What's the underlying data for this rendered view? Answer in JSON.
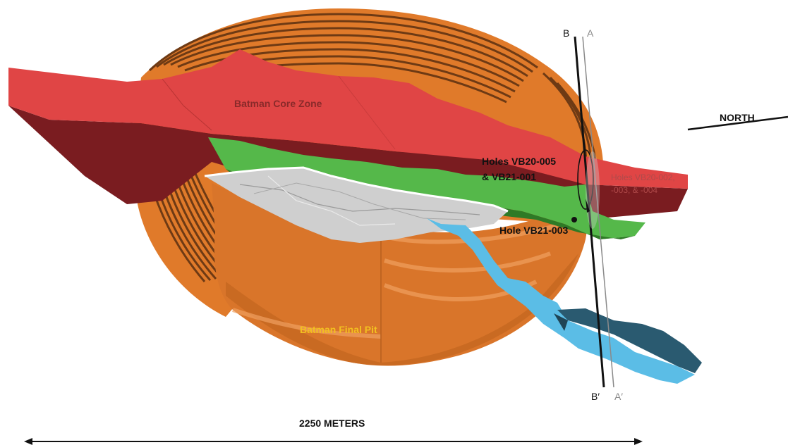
{
  "labels": {
    "core_zone": "Batman Core Zone",
    "final_pit": "Batman Final Pit",
    "holes_005_001_line1": "Holes VB20-005",
    "holes_005_001_line2": "& VB21-001",
    "holes_002_line1": "Holes VB20-002,",
    "holes_002_line2": "-003, & -004",
    "hole_003": "Hole VB21-003",
    "north": "NORTH",
    "scale": "2250 METERS",
    "section_b_top": "B",
    "section_a_top": "A",
    "section_b_bottom": "B′",
    "section_a_bottom": "A′"
  },
  "colors": {
    "core_zone": "#e04545",
    "core_zone_dark": "#7a1c20",
    "pit_orange": "#e07a2a",
    "pit_bench_dark": "#6e3a14",
    "green_zone": "#55b84a",
    "grey_zone": "#c9c9c9",
    "blue_zone": "#5bbde6",
    "blue_zone_dark": "#2a5a70",
    "pit_label": "#f2c020",
    "core_label": "#8a2a2a",
    "hole_label": "#111111",
    "holes_002_label": "#b04a4a"
  }
}
